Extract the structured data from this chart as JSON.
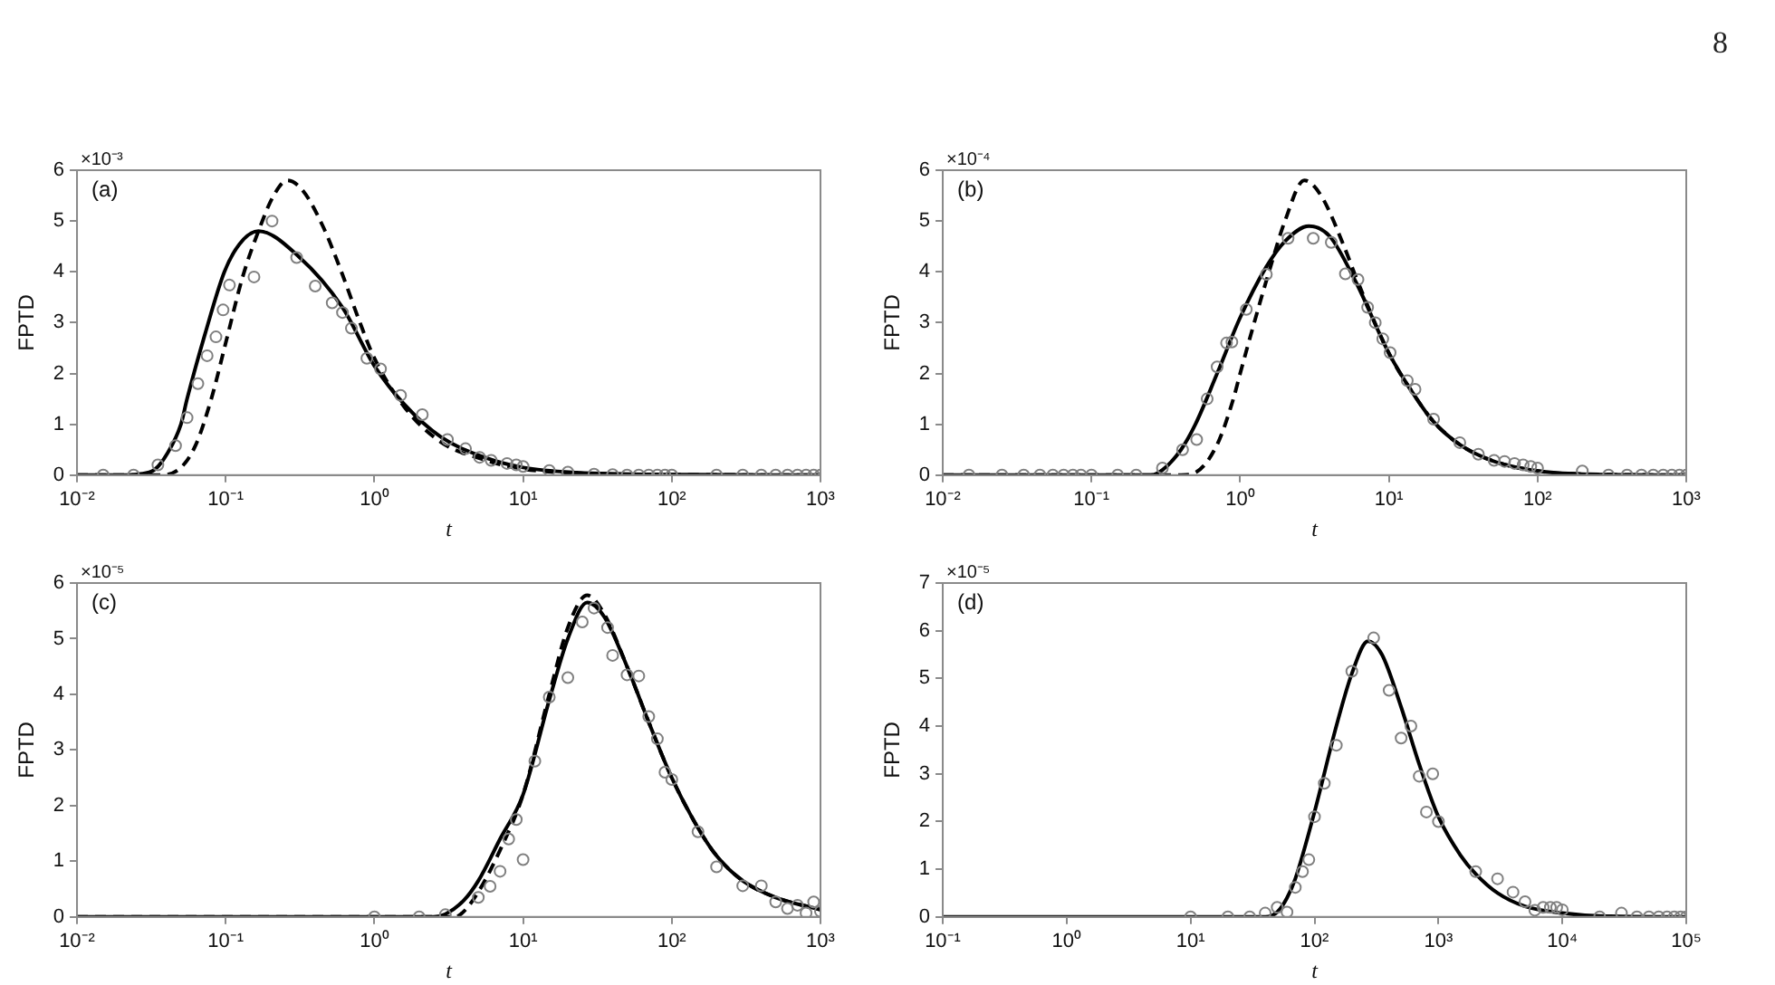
{
  "chart_data": [
    {
      "type": "line",
      "xlabel": "t",
      "ylabel": "FPTD",
      "log": "x",
      "xlim": [
        0.01,
        1000
      ],
      "ylim": [
        0,
        6
      ],
      "xticks": [
        {
          "value": 0.01,
          "label": "10⁻²"
        },
        {
          "value": 0.1,
          "label": "10⁻¹"
        },
        {
          "value": 1,
          "label": "10⁰"
        },
        {
          "value": 10,
          "label": "10¹"
        },
        {
          "value": 100,
          "label": "10²"
        },
        {
          "value": 1000,
          "label": "10³"
        }
      ],
      "yticks": [
        0,
        1,
        2,
        3,
        4,
        5,
        6
      ],
      "annotations": [
        "(a)",
        "×10⁻³",
        "8"
      ],
      "series": [
        {
          "type": "line",
          "color": "#000000",
          "x": [
            0.01,
            0.02,
            0.026,
            0.033,
            0.04,
            0.05,
            0.055,
            0.073,
            0.098,
            0.124,
            0.166,
            0.31,
            0.61,
            1.0,
            1.58,
            2.8,
            5.5,
            10,
            23,
            100,
            1000
          ],
          "values": [
            0,
            0,
            0.02,
            0.1,
            0.4,
            1.0,
            1.5,
            2.8,
            4.0,
            4.55,
            4.8,
            4.3,
            3.3,
            2.15,
            1.4,
            0.75,
            0.35,
            0.15,
            0.05,
            0.01,
            0
          ]
        },
        {
          "type": "line",
          "line_style": "dashed",
          "color": "#000000",
          "x": [
            0.01,
            0.036,
            0.05,
            0.063,
            0.08,
            0.1,
            0.13,
            0.166,
            0.21,
            0.26,
            0.33,
            0.45,
            0.6,
            0.8,
            1.0,
            1.58,
            2.8,
            5.5,
            10,
            23,
            100,
            1000
          ],
          "values": [
            0,
            0,
            0.15,
            0.6,
            1.5,
            2.6,
            3.9,
            4.8,
            5.5,
            5.8,
            5.6,
            4.9,
            4.0,
            3.0,
            2.3,
            1.35,
            0.65,
            0.3,
            0.12,
            0.04,
            0.01,
            0
          ]
        },
        {
          "type": "scatter",
          "marker": "circle",
          "color": "#808080",
          "x": [
            0.015,
            0.024,
            0.035,
            0.046,
            0.055,
            0.065,
            0.075,
            0.086,
            0.096,
            0.106,
            0.155,
            0.205,
            0.3,
            0.4,
            0.52,
            0.61,
            0.7,
            0.89,
            1.1,
            1.5,
            2.1,
            3.1,
            4.1,
            5.1,
            6.1,
            7.8,
            9,
            10,
            15,
            20,
            30,
            40,
            50,
            60,
            70,
            80,
            90,
            100,
            200,
            300,
            400,
            500,
            600,
            700,
            800,
            900,
            1000
          ],
          "values": [
            0,
            0,
            0.2,
            0.58,
            1.13,
            1.8,
            2.35,
            2.72,
            3.25,
            3.74,
            3.9,
            5.0,
            4.28,
            3.72,
            3.39,
            3.2,
            2.89,
            2.3,
            2.09,
            1.57,
            1.19,
            0.7,
            0.52,
            0.35,
            0.29,
            0.23,
            0.2,
            0.17,
            0.09,
            0.06,
            0.02,
            0.01,
            0,
            0,
            0,
            0,
            0,
            0,
            0,
            0,
            0,
            0,
            0,
            0,
            0,
            0,
            0
          ]
        }
      ]
    },
    {
      "type": "line",
      "xlabel": "t",
      "ylabel": "FPTD",
      "log": "x",
      "xlim": [
        0.01,
        1000
      ],
      "ylim": [
        0,
        6
      ],
      "xticks": [
        {
          "value": 0.01,
          "label": "10⁻²"
        },
        {
          "value": 0.1,
          "label": "10⁻¹"
        },
        {
          "value": 1,
          "label": "10⁰"
        },
        {
          "value": 10,
          "label": "10¹"
        },
        {
          "value": 100,
          "label": "10²"
        },
        {
          "value": 1000,
          "label": "10³"
        }
      ],
      "yticks": [
        0,
        1,
        2,
        3,
        4,
        5,
        6
      ],
      "annotations": [
        "(b)",
        "×10⁻⁴"
      ],
      "series": [
        {
          "type": "line",
          "color": "#000000",
          "x": [
            0.01,
            0.25,
            0.3,
            0.4,
            0.5,
            0.7,
            1.0,
            1.5,
            2.0,
            2.9,
            4,
            6,
            10,
            15,
            20,
            30,
            50,
            100,
            200,
            1000
          ],
          "values": [
            0,
            0,
            0.1,
            0.5,
            1.0,
            2.0,
            3.1,
            4.1,
            4.6,
            4.9,
            4.7,
            3.8,
            2.4,
            1.55,
            1.05,
            0.6,
            0.28,
            0.08,
            0.02,
            0
          ]
        },
        {
          "type": "line",
          "line_style": "dashed",
          "color": "#000000",
          "x": [
            0.01,
            0.4,
            0.5,
            0.7,
            0.9,
            1.0,
            1.3,
            1.6,
            2.0,
            2.7,
            3.5,
            5,
            6,
            10,
            15,
            20,
            30,
            50,
            100,
            200,
            1000
          ],
          "values": [
            0,
            0,
            0.05,
            0.6,
            1.5,
            2.0,
            3.2,
            4.1,
            5.0,
            5.8,
            5.5,
            4.5,
            3.9,
            2.4,
            1.55,
            1.05,
            0.6,
            0.28,
            0.08,
            0.02,
            0
          ]
        },
        {
          "type": "scatter",
          "marker": "circle",
          "color": "#808080",
          "x": [
            0.015,
            0.025,
            0.035,
            0.045,
            0.055,
            0.065,
            0.075,
            0.085,
            0.1,
            0.15,
            0.2,
            0.3,
            0.41,
            0.51,
            0.6,
            0.7,
            0.81,
            0.88,
            1.1,
            1.5,
            2.1,
            3.1,
            4.1,
            5.1,
            6.2,
            7.2,
            8.1,
            9.1,
            10.2,
            13.3,
            15,
            20,
            30,
            40,
            51,
            60,
            70,
            80,
            90,
            100,
            200,
            300,
            400,
            500,
            600,
            700,
            800,
            900,
            1000
          ],
          "values": [
            0,
            0,
            0,
            0,
            0,
            0,
            0,
            0,
            0,
            0,
            0,
            0.14,
            0.5,
            0.7,
            1.5,
            2.13,
            2.6,
            2.62,
            3.26,
            3.95,
            4.66,
            4.66,
            4.58,
            3.96,
            3.85,
            3.3,
            3.0,
            2.68,
            2.41,
            1.86,
            1.69,
            1.1,
            0.64,
            0.41,
            0.29,
            0.27,
            0.23,
            0.2,
            0.17,
            0.14,
            0.08,
            0,
            0,
            0,
            0,
            0,
            0,
            0,
            0
          ]
        }
      ]
    },
    {
      "type": "line",
      "xlabel": "t",
      "ylabel": "FPTD",
      "log": "x",
      "xlim": [
        0.01,
        1000
      ],
      "ylim": [
        0,
        6
      ],
      "xticks": [
        {
          "value": 0.01,
          "label": "10⁻²"
        },
        {
          "value": 0.1,
          "label": "10⁻¹"
        },
        {
          "value": 1,
          "label": "10⁰"
        },
        {
          "value": 10,
          "label": "10¹"
        },
        {
          "value": 100,
          "label": "10²"
        },
        {
          "value": 1000,
          "label": "10³"
        }
      ],
      "yticks": [
        0,
        1,
        2,
        3,
        4,
        5,
        6
      ],
      "annotations": [
        "(c)",
        "×10⁻⁵"
      ],
      "series": [
        {
          "type": "line",
          "color": "#000000",
          "x": [
            0.01,
            2.5,
            3,
            4,
            5,
            7,
            10,
            15,
            20,
            27,
            35,
            50,
            70,
            100,
            150,
            200,
            300,
            500,
            1000
          ],
          "values": [
            0,
            0,
            0.05,
            0.3,
            0.65,
            1.4,
            2.2,
            3.9,
            5.0,
            5.65,
            5.4,
            4.5,
            3.5,
            2.5,
            1.6,
            1.1,
            0.65,
            0.35,
            0.13
          ]
        },
        {
          "type": "line",
          "line_style": "dashed",
          "color": "#000000",
          "x": [
            0.01,
            3.5,
            4,
            5,
            7,
            10,
            15,
            20,
            27,
            35,
            50,
            70,
            100,
            150,
            200,
            300,
            500,
            1000
          ],
          "values": [
            0,
            0,
            0.1,
            0.45,
            1.2,
            2.2,
            4.0,
            5.2,
            5.78,
            5.45,
            4.5,
            3.5,
            2.5,
            1.6,
            1.1,
            0.65,
            0.35,
            0.13
          ]
        },
        {
          "type": "scatter",
          "marker": "circle",
          "color": "#808080",
          "x": [
            1,
            2,
            3,
            5,
            6,
            7,
            8,
            9,
            10,
            12,
            15,
            20,
            25,
            30,
            37,
            40,
            50,
            60,
            70,
            80,
            90,
            100,
            150,
            200,
            300,
            400,
            500,
            600,
            700,
            800,
            900,
            1000
          ],
          "values": [
            0,
            0,
            0.04,
            0.35,
            0.55,
            0.82,
            1.4,
            1.75,
            1.03,
            2.8,
            3.95,
            4.3,
            5.3,
            5.55,
            5.2,
            4.7,
            4.35,
            4.33,
            3.6,
            3.2,
            2.6,
            2.47,
            1.53,
            0.9,
            0.56,
            0.56,
            0.27,
            0.15,
            0.21,
            0.07,
            0.27,
            0.1
          ]
        }
      ]
    },
    {
      "type": "line",
      "xlabel": "t",
      "ylabel": "FPTD",
      "log": "x",
      "xlim": [
        0.1,
        100000
      ],
      "ylim": [
        0,
        7
      ],
      "xticks": [
        {
          "value": 0.1,
          "label": "10⁻¹"
        },
        {
          "value": 1,
          "label": "10⁰"
        },
        {
          "value": 10,
          "label": "10¹"
        },
        {
          "value": 100,
          "label": "10²"
        },
        {
          "value": 1000,
          "label": "10³"
        },
        {
          "value": 10000,
          "label": "10⁴"
        },
        {
          "value": 100000,
          "label": "10⁵"
        }
      ],
      "yticks": [
        0,
        1,
        2,
        3,
        4,
        5,
        6,
        7
      ],
      "annotations": [
        "(d)",
        "×10⁻⁵"
      ],
      "series": [
        {
          "type": "line",
          "color": "#000000",
          "x": [
            0.1,
            40,
            50,
            60,
            70,
            100,
            150,
            200,
            270,
            350,
            500,
            700,
            1000,
            1500,
            2000,
            3000,
            5000,
            10000,
            20000,
            100000
          ],
          "values": [
            0,
            0,
            0.1,
            0.4,
            0.8,
            2.2,
            4.0,
            5.1,
            5.78,
            5.5,
            4.4,
            3.2,
            2.1,
            1.3,
            0.9,
            0.5,
            0.22,
            0.08,
            0.02,
            0
          ]
        },
        {
          "type": "scatter",
          "marker": "circle",
          "color": "#808080",
          "x": [
            10,
            20,
            30,
            40,
            50,
            60,
            70,
            80,
            90,
            100,
            120,
            150,
            200,
            300,
            400,
            500,
            600,
            700,
            800,
            900,
            1000,
            2000,
            3000,
            4000,
            5000,
            6000,
            7000,
            8000,
            9000,
            10000,
            20000,
            30000,
            40000,
            50000,
            60000,
            70000,
            80000,
            90000,
            100000
          ],
          "values": [
            0,
            0,
            0,
            0.08,
            0.2,
            0.1,
            0.62,
            0.95,
            1.2,
            2.1,
            2.8,
            3.6,
            5.15,
            5.85,
            4.75,
            3.75,
            4.0,
            2.95,
            2.2,
            3.0,
            2.0,
            0.95,
            0.8,
            0.52,
            0.32,
            0.14,
            0.2,
            0.2,
            0.2,
            0.15,
            0,
            0.08,
            0,
            0,
            0,
            0,
            0,
            0,
            0
          ]
        }
      ]
    }
  ]
}
